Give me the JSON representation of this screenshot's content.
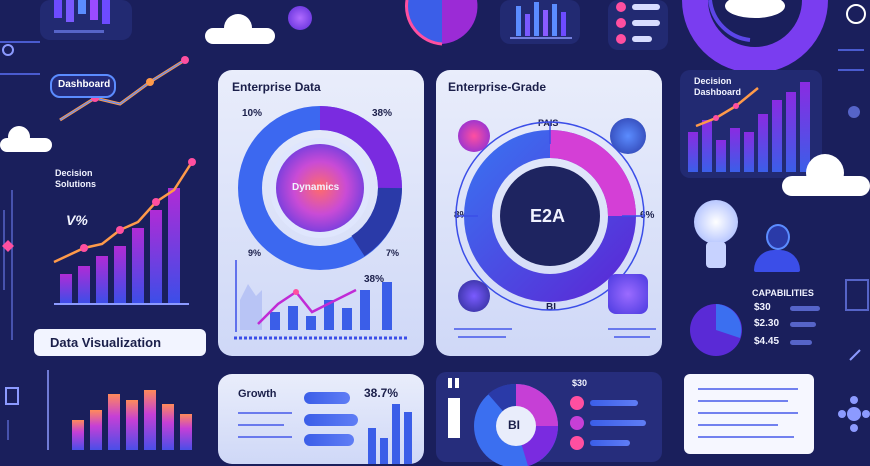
{
  "banner": {
    "title": "Data Visualization"
  },
  "left_column": {
    "bubble_label": "Dashboard",
    "subtitle": "Decision Solutions",
    "percent": "V%"
  },
  "panel_left": {
    "title": "Enterprise Data",
    "donut_center": "Dynamics",
    "tl": "10%",
    "tr": "38%",
    "bl": "9%",
    "br": "7%",
    "mini_pct": "38%"
  },
  "panel_center": {
    "title": "Enterprise-Grade",
    "center_text": "E2A",
    "top": "PAIS",
    "left": "8%",
    "right": "6%",
    "bottom": "BI"
  },
  "right_column": {
    "chart_label": "Decision Dashboard",
    "stats_title": "CAPABILITIES",
    "stat1": "$30",
    "stat2": "$2.30",
    "stat3": "$4.45"
  },
  "bottom": {
    "growth_title": "Growth",
    "growth_pct": "38.7%",
    "bi_label": "BI",
    "sm_label": "$30"
  },
  "colors": {
    "bg": "#1a1f5c",
    "accent_purple": "#8a2be2",
    "accent_blue": "#2d6bff",
    "accent_pink": "#ff4fa0",
    "accent_orange": "#ff9a4a"
  }
}
